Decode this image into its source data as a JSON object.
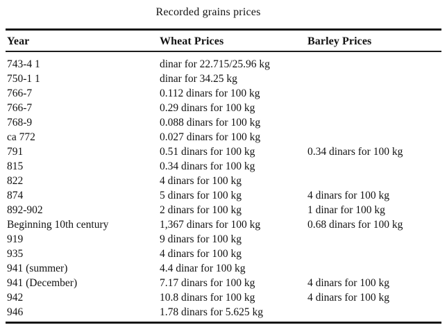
{
  "title": "Recorded grains prices",
  "table": {
    "columns": [
      "Year",
      "Wheat Prices",
      "Barley Prices"
    ],
    "rows": [
      {
        "year": "743-4 1",
        "wheat": "dinar for 22.715/25.96 kg",
        "barley": ""
      },
      {
        "year": "750-1 1",
        "wheat": "dinar for 34.25 kg",
        "barley": ""
      },
      {
        "year": "766-7",
        "wheat": "0.112 dinars for 100 kg",
        "barley": ""
      },
      {
        "year": "766-7",
        "wheat": "0.29 dinars for 100 kg",
        "barley": ""
      },
      {
        "year": "768-9",
        "wheat": "0.088 dinars for 100 kg",
        "barley": ""
      },
      {
        "year": "ca 772",
        "wheat": "0.027 dinars for 100 kg",
        "barley": ""
      },
      {
        "year": "791",
        "wheat": "0.51 dinars for 100 kg",
        "barley": "0.34 dinars for 100 kg"
      },
      {
        "year": "815",
        "wheat": "0.34 dinars for 100 kg",
        "barley": ""
      },
      {
        "year": "822",
        "wheat": "4 dinars for 100 kg",
        "barley": ""
      },
      {
        "year": "874",
        "wheat": "5 dinars for 100 kg",
        "barley": "4 dinars for 100 kg"
      },
      {
        "year": "892-902",
        "wheat": "2 dinars for 100 kg",
        "barley": "1 dinar for 100 kg"
      },
      {
        "year": "Beginning 10th century",
        "wheat": "1,367 dinars for 100 kg",
        "barley": "0.68 dinars for 100 kg"
      },
      {
        "year": "919",
        "wheat": "9 dinars for 100 kg",
        "barley": ""
      },
      {
        "year": "935",
        "wheat": "4 dinars for 100 kg",
        "barley": ""
      },
      {
        "year": "941 (summer)",
        "wheat": "4.4 dinar for 100 kg",
        "barley": ""
      },
      {
        "year": "941 (December)",
        "wheat": "7.17 dinars for 100 kg",
        "barley": "4 dinars for 100 kg"
      },
      {
        "year": "942",
        "wheat": "10.8 dinars for 100 kg",
        "barley": "4 dinars for 100 kg"
      },
      {
        "year": "946",
        "wheat": "1.78 dinars for 5.625 kg",
        "barley": ""
      }
    ]
  },
  "colors": {
    "background": "#ffffff",
    "text": "#121212",
    "rule": "#161616"
  }
}
